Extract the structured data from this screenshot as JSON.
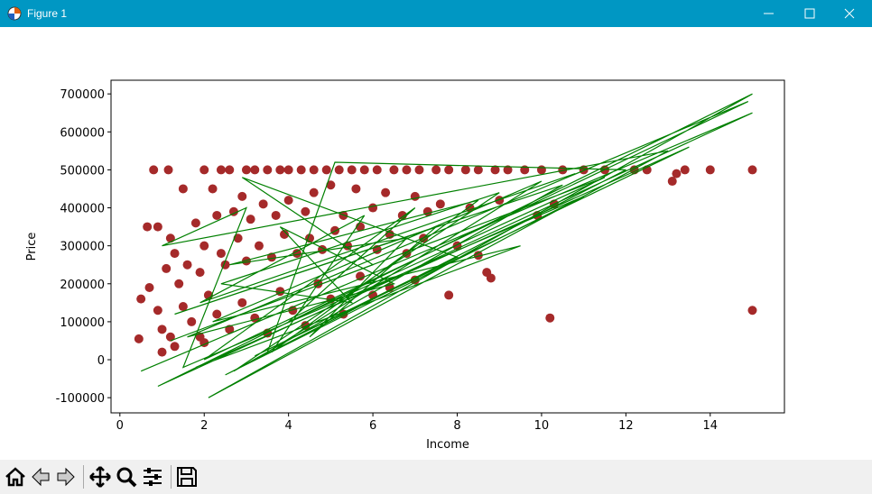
{
  "window": {
    "title": "Figure 1"
  },
  "chart_data": {
    "type": "scatter",
    "xlabel": "Income",
    "ylabel": "Price",
    "xlim": [
      -0.21,
      15.76
    ],
    "ylim": [
      -140000,
      736000
    ],
    "xticks": [
      0,
      2,
      4,
      6,
      8,
      10,
      12,
      14
    ],
    "yticks": [
      -100000,
      0,
      100000,
      200000,
      300000,
      400000,
      500000,
      600000,
      700000
    ],
    "series": [
      {
        "type": "scatter",
        "color": "#a52a2a",
        "x": [
          0.8,
          1.15,
          2.0,
          2.4,
          2.6,
          3.0,
          3.2,
          3.5,
          3.8,
          4.0,
          4.3,
          4.6,
          4.9,
          5.2,
          5.5,
          5.8,
          6.1,
          6.5,
          6.8,
          7.1,
          7.5,
          7.8,
          8.2,
          8.5,
          8.9,
          9.2,
          9.6,
          10.0,
          10.5,
          11.0,
          11.5,
          12.2,
          12.5,
          13.4,
          14.0,
          15.0,
          1.5,
          2.2,
          2.9,
          3.4,
          4.0,
          4.6,
          5.0,
          5.6,
          6.3,
          7.0,
          7.6,
          8.3,
          9.0,
          9.9,
          10.3,
          13.1,
          13.2,
          0.65,
          0.9,
          1.2,
          1.8,
          2.3,
          2.7,
          3.1,
          3.7,
          4.4,
          5.3,
          6.0,
          6.7,
          7.3,
          1.3,
          1.6,
          2.0,
          2.4,
          2.8,
          3.3,
          3.9,
          4.5,
          5.1,
          5.7,
          6.4,
          7.2,
          8.0,
          8.5,
          8.7,
          8.8,
          7.8,
          1.1,
          1.4,
          1.9,
          2.5,
          3.0,
          3.6,
          4.2,
          4.8,
          5.4,
          6.1,
          6.8,
          0.5,
          0.45,
          0.7,
          0.9,
          1.0,
          1.2,
          1.5,
          1.7,
          1.9,
          2.1,
          2.3,
          2.6,
          2.9,
          3.2,
          3.5,
          3.8,
          4.1,
          4.4,
          4.7,
          5.0,
          5.3,
          5.7,
          6.0,
          6.4,
          7.0,
          10.2,
          15.0,
          1.0,
          1.3,
          2.0
        ],
        "y": [
          500000,
          500000,
          500000,
          500000,
          500000,
          500000,
          500000,
          500000,
          500000,
          500000,
          500000,
          500000,
          500000,
          500000,
          500000,
          500000,
          500000,
          500000,
          500000,
          500000,
          500000,
          500000,
          500000,
          500000,
          500000,
          500000,
          500000,
          500000,
          500000,
          500000,
          500000,
          500000,
          500000,
          500000,
          500000,
          500000,
          450000,
          450000,
          430000,
          410000,
          420000,
          440000,
          460000,
          450000,
          440000,
          430000,
          410000,
          400000,
          420000,
          380000,
          410000,
          470000,
          490000,
          350000,
          350000,
          320000,
          360000,
          380000,
          390000,
          370000,
          380000,
          390000,
          380000,
          400000,
          380000,
          390000,
          280000,
          250000,
          300000,
          280000,
          320000,
          300000,
          330000,
          320000,
          340000,
          350000,
          330000,
          320000,
          300000,
          275000,
          230000,
          215000,
          170000,
          240000,
          200000,
          230000,
          250000,
          260000,
          270000,
          280000,
          290000,
          300000,
          290000,
          280000,
          160000,
          55000,
          190000,
          130000,
          80000,
          60000,
          140000,
          100000,
          60000,
          170000,
          120000,
          80000,
          150000,
          110000,
          70000,
          180000,
          130000,
          90000,
          200000,
          160000,
          120000,
          220000,
          170000,
          190000,
          210000,
          110000,
          130000,
          20000,
          35000,
          45000
        ]
      },
      {
        "type": "line",
        "color": "#008000",
        "x": [
          0.5,
          15.0,
          0.9,
          15.0,
          2.1,
          13.0,
          1.0,
          3.0,
          1.5,
          11.0,
          2.5,
          12.0,
          5.1,
          3.5,
          10.0,
          2.2,
          9.5,
          1.8,
          13.5,
          3.2,
          8.0,
          2.9,
          6.0,
          1.2,
          11.5,
          4.0,
          7.0,
          2.0,
          14.9,
          1.6,
          6.5,
          3.8,
          5.5,
          2.4,
          9.0,
          2.7,
          10.5,
          1.3,
          7.5,
          4.5,
          6.8,
          2.6,
          8.5,
          3.6,
          5.8,
          1.9,
          10.8
        ],
        "y": [
          -30000,
          650000,
          -70000,
          700000,
          -100000,
          550000,
          300000,
          400000,
          -20000,
          430000,
          -40000,
          500000,
          520000,
          20000,
          470000,
          100000,
          300000,
          -20000,
          560000,
          10000,
          270000,
          480000,
          250000,
          50000,
          480000,
          100000,
          400000,
          0,
          680000,
          60000,
          200000,
          350000,
          150000,
          200000,
          440000,
          -30000,
          460000,
          120000,
          350000,
          60000,
          320000,
          250000,
          420000,
          20000,
          380000,
          150000,
          490000
        ]
      }
    ]
  }
}
